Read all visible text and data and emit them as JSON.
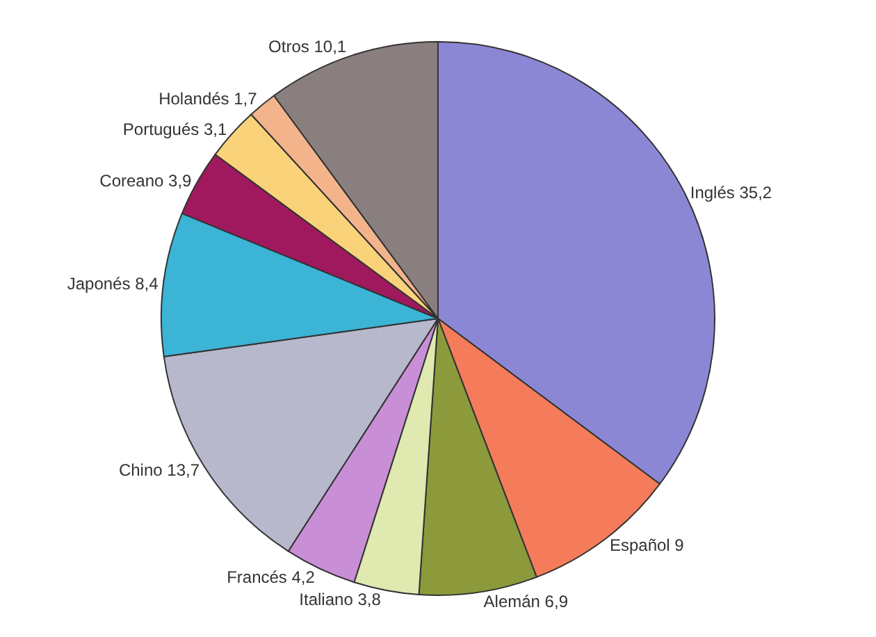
{
  "chart_data": {
    "type": "pie",
    "categories": [
      "Inglés",
      "Español",
      "Alemán",
      "Italiano",
      "Francés",
      "Chino",
      "Japonés",
      "Coreano",
      "Portugués",
      "Holandés",
      "Otros"
    ],
    "values": [
      35.2,
      9,
      6.9,
      3.8,
      4.2,
      13.7,
      8.4,
      3.9,
      3.1,
      1.7,
      10.1
    ],
    "value_labels": [
      "35,2",
      "9",
      "6,9",
      "3,8",
      "4,2",
      "13,7",
      "8,4",
      "3,9",
      "3,1",
      "1,7",
      "10,1"
    ],
    "colors": [
      "#8c87d4",
      "#f47c5a",
      "#8c9a3c",
      "#dfe9b0",
      "#c98fd6",
      "#b8b8cc",
      "#3bb4d6",
      "#a0195e",
      "#f9d27a",
      "#f3b48c",
      "#8a7f7f"
    ],
    "legend": false
  }
}
